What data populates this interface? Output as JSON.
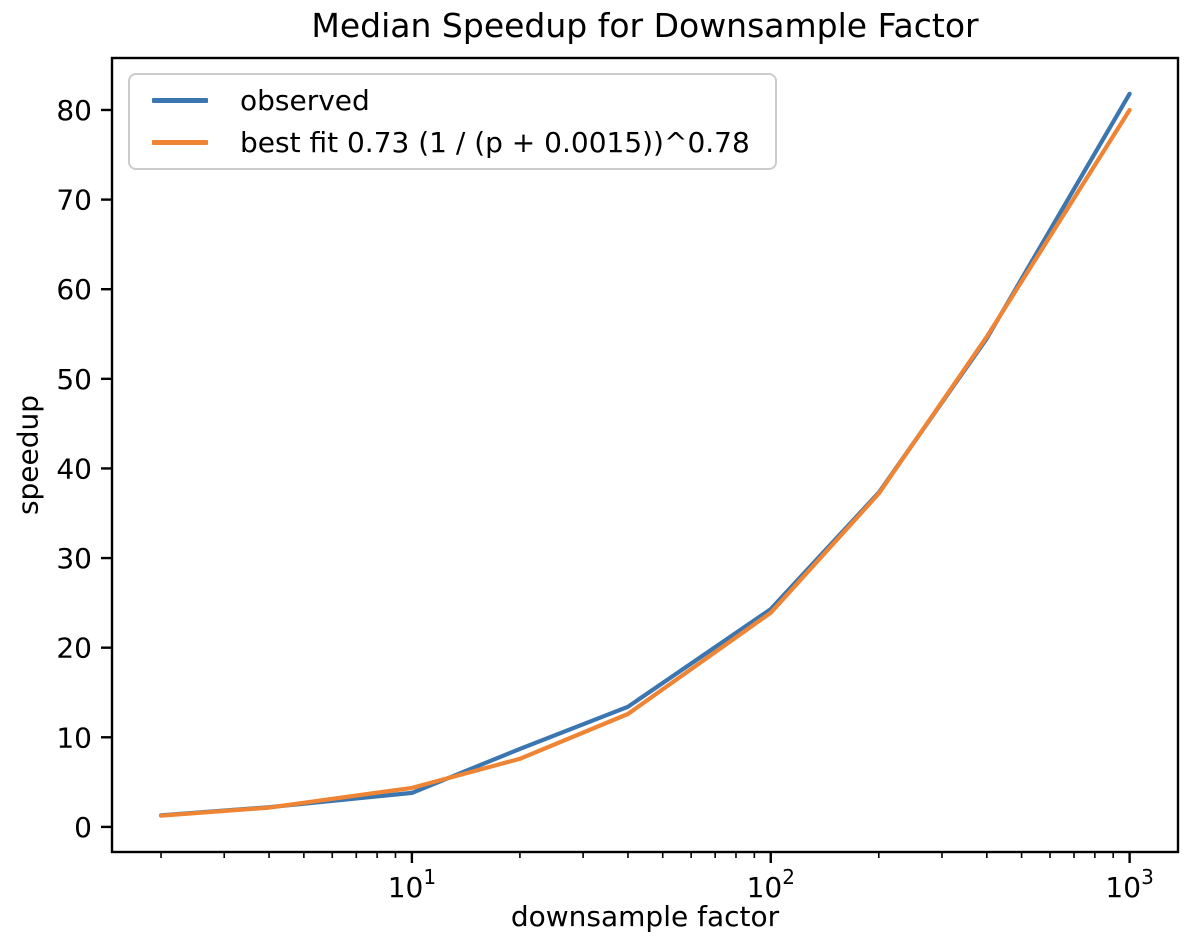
{
  "chart_data": {
    "type": "line",
    "title": "Median Speedup for Downsample Factor",
    "xlabel": "downsample factor",
    "ylabel": "speedup",
    "x_scale": "log",
    "grid": false,
    "legend_position": "upper left",
    "x": [
      2,
      4,
      10,
      20,
      40,
      100,
      200,
      400,
      1000
    ],
    "series": [
      {
        "name": "observed",
        "color": "#3b76b0",
        "values": [
          1.3,
          2.2,
          3.8,
          8.7,
          13.4,
          24.3,
          37.3,
          54.5,
          81.8
        ]
      },
      {
        "name": "best fit 0.73 (1 / (p + 0.0015))^0.78",
        "color": "#ee8434",
        "values": [
          1.25,
          2.15,
          4.35,
          7.6,
          12.6,
          23.9,
          37.2,
          54.7,
          80.0
        ]
      }
    ],
    "xlim": [
      1.46,
      1364
    ],
    "ylim": [
      -2.8,
      85.8
    ],
    "y_ticks": [
      0,
      10,
      20,
      30,
      40,
      50,
      60,
      70,
      80
    ],
    "x_major_ticks": [
      {
        "value": 10,
        "label_base": "10",
        "label_exp": "1"
      },
      {
        "value": 100,
        "label_base": "10",
        "label_exp": "2"
      },
      {
        "value": 1000,
        "label_base": "10",
        "label_exp": "3"
      }
    ],
    "x_minor_ticks": [
      2,
      3,
      4,
      5,
      6,
      7,
      8,
      9,
      20,
      30,
      40,
      50,
      60,
      70,
      80,
      90,
      200,
      300,
      400,
      500,
      600,
      700,
      800,
      900
    ]
  }
}
